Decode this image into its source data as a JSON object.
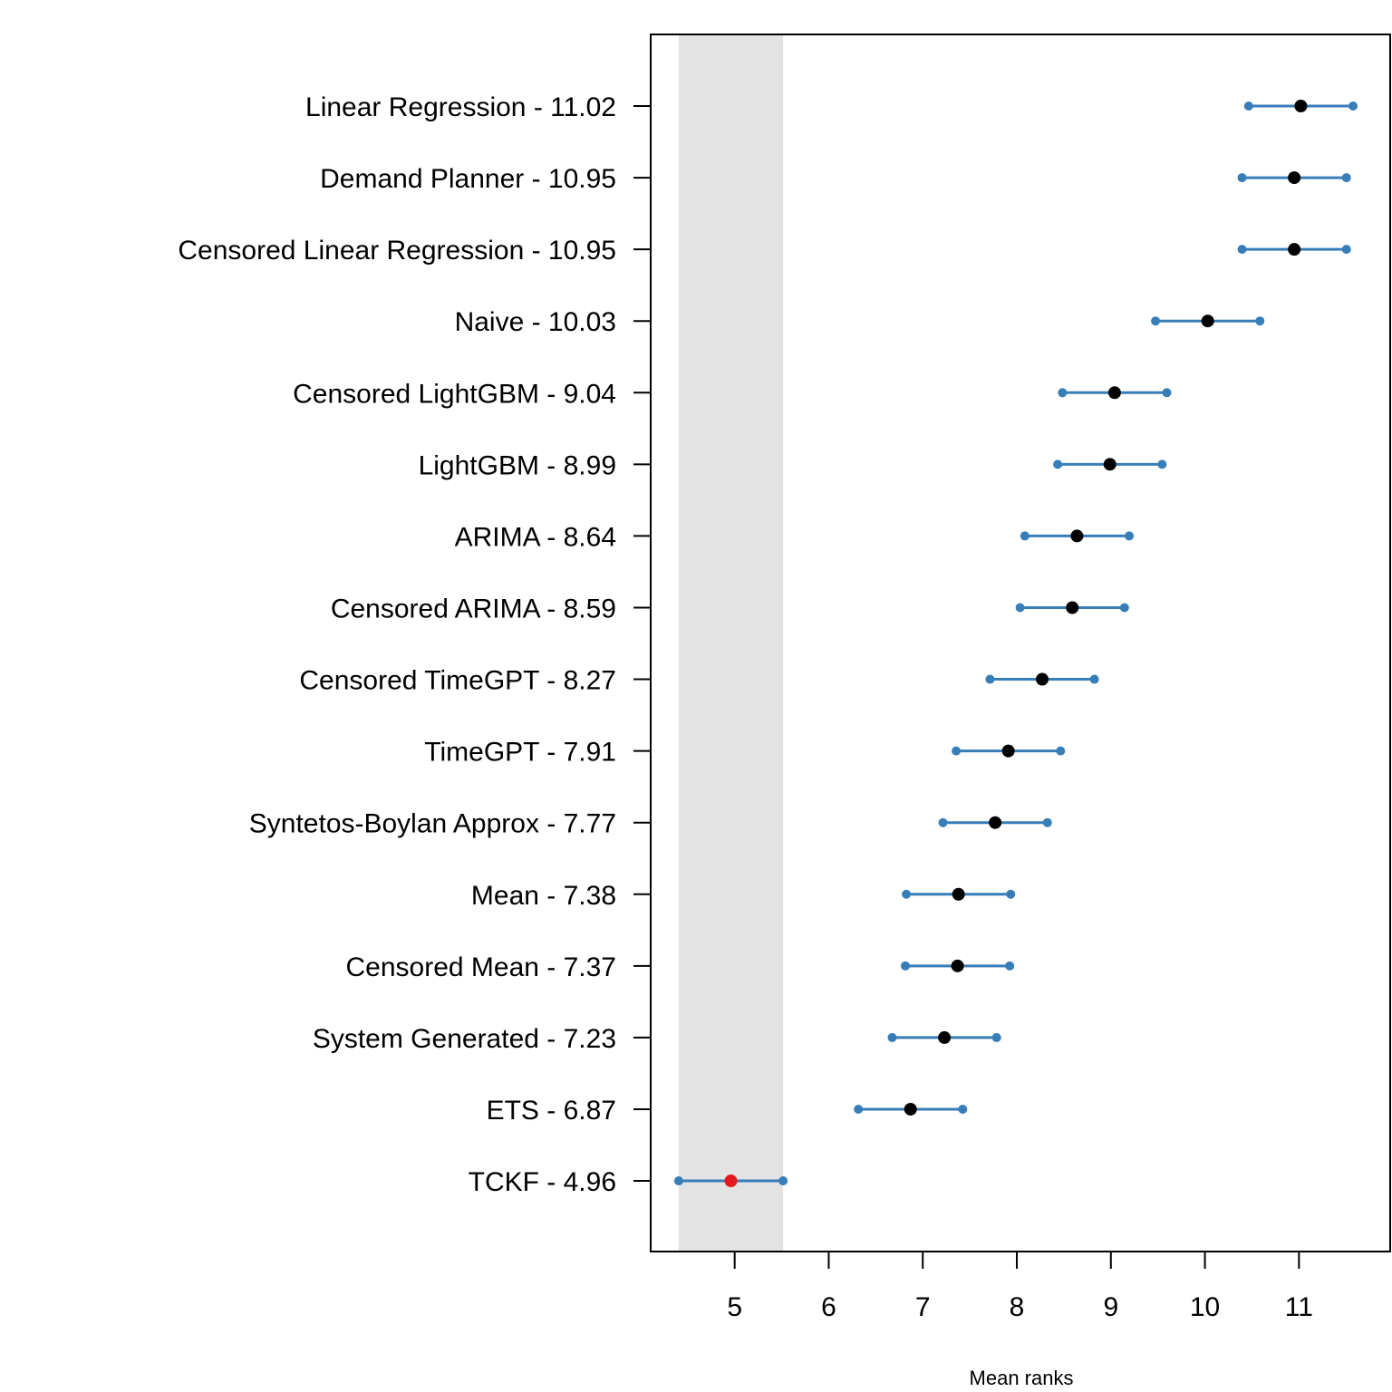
{
  "chart_data": {
    "type": "scatter",
    "subtype": "critical-difference-interval-plot",
    "title": "",
    "xlabel": "Mean ranks",
    "ylabel": "",
    "xlim": [
      4.107,
      11.97
    ],
    "xticks": [
      5,
      6,
      7,
      8,
      9,
      10,
      11
    ],
    "xtick_labels": [
      "5",
      "6",
      "7",
      "8",
      "9",
      "10",
      "11"
    ],
    "grid": false,
    "legend": "none",
    "interval_half_width": 0.555,
    "highlight_band": [
      4.405,
      5.515
    ],
    "categories": [
      "Linear Regression - 11.02",
      "Demand Planner - 10.95",
      "Censored Linear Regression - 10.95",
      "Naive - 10.03",
      "Censored LightGBM - 9.04",
      "LightGBM - 8.99",
      "ARIMA - 8.64",
      "Censored ARIMA - 8.59",
      "Censored TimeGPT - 8.27",
      "TimeGPT - 7.91",
      "Syntetos-Boylan Approx - 7.77",
      "Mean - 7.38",
      "Censored Mean - 7.37",
      "System Generated - 7.23",
      "ETS - 6.87",
      "TCKF - 4.96"
    ],
    "series": [
      {
        "name": "mean rank",
        "values": [
          11.02,
          10.95,
          10.95,
          10.03,
          9.04,
          8.99,
          8.64,
          8.59,
          8.27,
          7.91,
          7.77,
          7.38,
          7.37,
          7.23,
          6.87,
          4.96
        ],
        "best_index": 15
      }
    ],
    "colors": {
      "point": "#000000",
      "best_point": "#e31a1c",
      "interval": "#377eb8",
      "band": "#e3e3e3",
      "axis": "#000000"
    }
  }
}
